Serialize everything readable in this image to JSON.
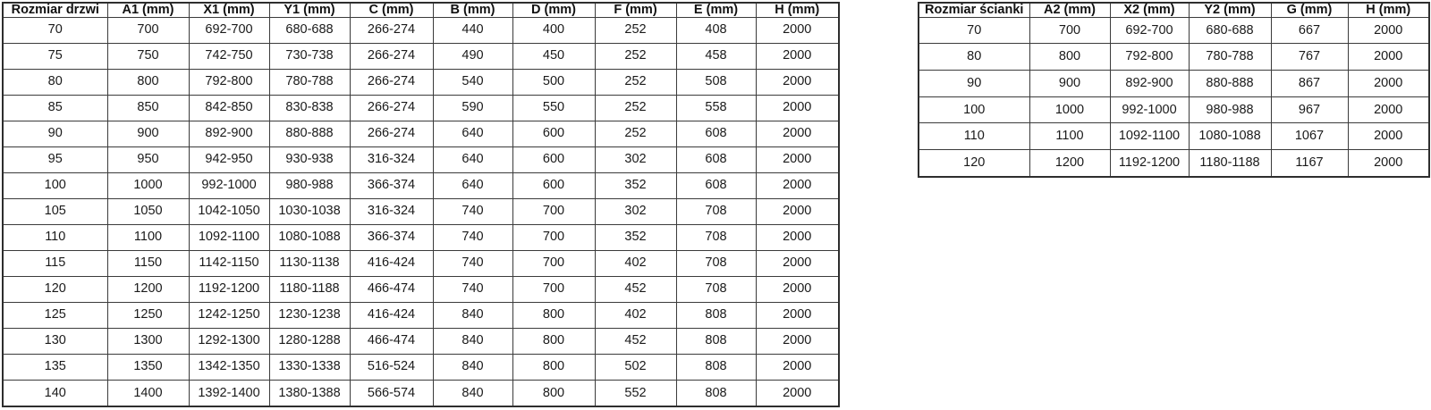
{
  "colors": {
    "background": "#ffffff",
    "border_inner": "#3b3b3b",
    "border_outer": "#2e2e2e",
    "text": "#1a1a1a"
  },
  "tables": {
    "door": {
      "title": "Rozmiar drzwi",
      "headers": [
        "Rozmiar drzwi",
        "A1 (mm)",
        "X1 (mm)",
        "Y1 (mm)",
        "C (mm)",
        "B (mm)",
        "D (mm)",
        "F (mm)",
        "E (mm)",
        "H (mm)"
      ],
      "rows": [
        [
          "70",
          "700",
          "692-700",
          "680-688",
          "266-274",
          "440",
          "400",
          "252",
          "408",
          "2000"
        ],
        [
          "75",
          "750",
          "742-750",
          "730-738",
          "266-274",
          "490",
          "450",
          "252",
          "458",
          "2000"
        ],
        [
          "80",
          "800",
          "792-800",
          "780-788",
          "266-274",
          "540",
          "500",
          "252",
          "508",
          "2000"
        ],
        [
          "85",
          "850",
          "842-850",
          "830-838",
          "266-274",
          "590",
          "550",
          "252",
          "558",
          "2000"
        ],
        [
          "90",
          "900",
          "892-900",
          "880-888",
          "266-274",
          "640",
          "600",
          "252",
          "608",
          "2000"
        ],
        [
          "95",
          "950",
          "942-950",
          "930-938",
          "316-324",
          "640",
          "600",
          "302",
          "608",
          "2000"
        ],
        [
          "100",
          "1000",
          "992-1000",
          "980-988",
          "366-374",
          "640",
          "600",
          "352",
          "608",
          "2000"
        ],
        [
          "105",
          "1050",
          "1042-1050",
          "1030-1038",
          "316-324",
          "740",
          "700",
          "302",
          "708",
          "2000"
        ],
        [
          "110",
          "1100",
          "1092-1100",
          "1080-1088",
          "366-374",
          "740",
          "700",
          "352",
          "708",
          "2000"
        ],
        [
          "115",
          "1150",
          "1142-1150",
          "1130-1138",
          "416-424",
          "740",
          "700",
          "402",
          "708",
          "2000"
        ],
        [
          "120",
          "1200",
          "1192-1200",
          "1180-1188",
          "466-474",
          "740",
          "700",
          "452",
          "708",
          "2000"
        ],
        [
          "125",
          "1250",
          "1242-1250",
          "1230-1238",
          "416-424",
          "840",
          "800",
          "402",
          "808",
          "2000"
        ],
        [
          "130",
          "1300",
          "1292-1300",
          "1280-1288",
          "466-474",
          "840",
          "800",
          "452",
          "808",
          "2000"
        ],
        [
          "135",
          "1350",
          "1342-1350",
          "1330-1338",
          "516-524",
          "840",
          "800",
          "502",
          "808",
          "2000"
        ],
        [
          "140",
          "1400",
          "1392-1400",
          "1380-1388",
          "566-574",
          "840",
          "800",
          "552",
          "808",
          "2000"
        ]
      ]
    },
    "wall": {
      "title": "Rozmiar ścianki",
      "headers": [
        "Rozmiar ścianki",
        "A2 (mm)",
        "X2 (mm)",
        "Y2 (mm)",
        "G (mm)",
        "H (mm)"
      ],
      "rows": [
        [
          "70",
          "700",
          "692-700",
          "680-688",
          "667",
          "2000"
        ],
        [
          "80",
          "800",
          "792-800",
          "780-788",
          "767",
          "2000"
        ],
        [
          "90",
          "900",
          "892-900",
          "880-888",
          "867",
          "2000"
        ],
        [
          "100",
          "1000",
          "992-1000",
          "980-988",
          "967",
          "2000"
        ],
        [
          "110",
          "1100",
          "1092-1100",
          "1080-1088",
          "1067",
          "2000"
        ],
        [
          "120",
          "1200",
          "1192-1200",
          "1180-1188",
          "1167",
          "2000"
        ]
      ]
    }
  }
}
